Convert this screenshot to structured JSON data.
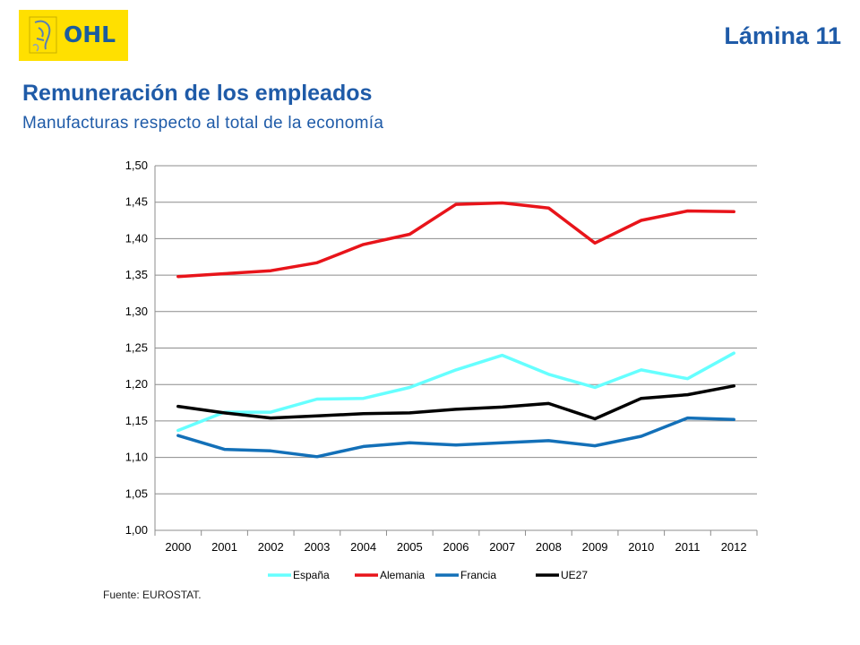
{
  "header": {
    "logo_text": "OHL",
    "slide_label": "Lámina 11"
  },
  "title": "Remuneración de los empleados",
  "subtitle": "Manufacturas respecto al total de la economía",
  "source": "Fuente: EUROSTAT.",
  "colors": {
    "brand_yellow": "#ffe000",
    "brand_blue": "#1f5ba8"
  },
  "chart_data": {
    "type": "line",
    "x": [
      "2000",
      "2001",
      "2002",
      "2003",
      "2004",
      "2005",
      "2006",
      "2007",
      "2008",
      "2009",
      "2010",
      "2011",
      "2012"
    ],
    "ylim": [
      1.0,
      1.5
    ],
    "yticks": [
      "1,00",
      "1,05",
      "1,10",
      "1,15",
      "1,20",
      "1,25",
      "1,30",
      "1,35",
      "1,40",
      "1,45",
      "1,50"
    ],
    "grid": true,
    "legend": "bottom",
    "series": [
      {
        "name": "España",
        "color": "#66ffff",
        "values": [
          1.137,
          1.162,
          1.162,
          1.18,
          1.181,
          1.196,
          1.22,
          1.24,
          1.214,
          1.196,
          1.22,
          1.208,
          1.243
        ]
      },
      {
        "name": "Alemania",
        "color": "#e8141a",
        "values": [
          1.348,
          1.352,
          1.356,
          1.367,
          1.392,
          1.406,
          1.447,
          1.449,
          1.442,
          1.394,
          1.425,
          1.438,
          1.437
        ]
      },
      {
        "name": "Francia",
        "color": "#1370b8",
        "values": [
          1.13,
          1.111,
          1.109,
          1.101,
          1.115,
          1.12,
          1.117,
          1.12,
          1.123,
          1.116,
          1.129,
          1.154,
          1.152
        ]
      },
      {
        "name": "UE27",
        "color": "#000000",
        "values": [
          1.17,
          1.161,
          1.154,
          1.157,
          1.16,
          1.161,
          1.166,
          1.169,
          1.174,
          1.153,
          1.181,
          1.186,
          1.198
        ]
      }
    ]
  }
}
